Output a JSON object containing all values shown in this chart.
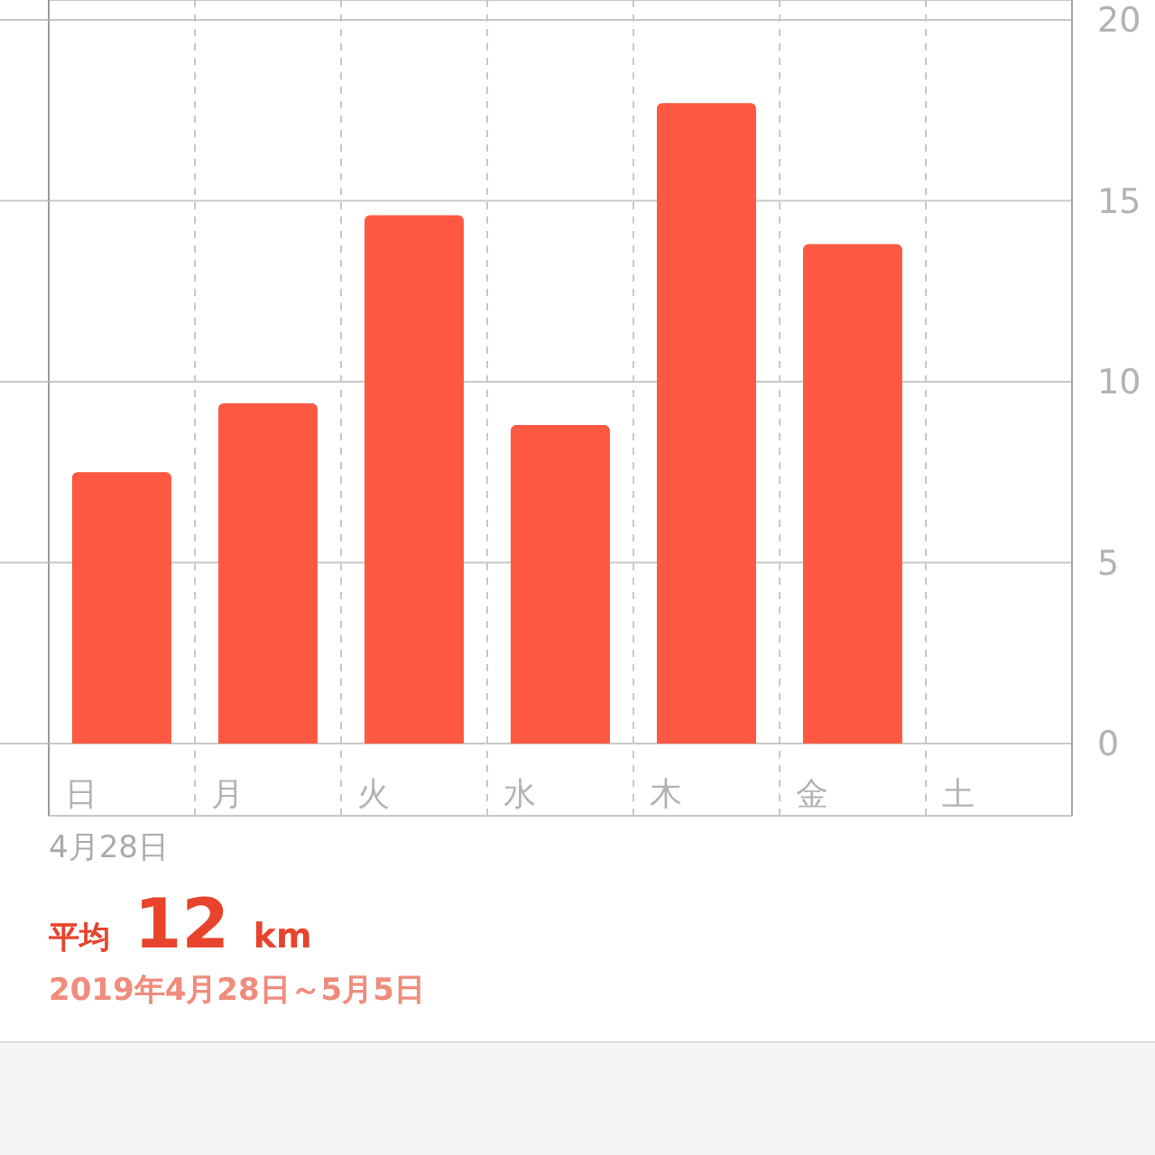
{
  "chart_data": {
    "type": "bar",
    "title": "平均 12 km",
    "subtitle": "2019年4月28日～5月5日",
    "annotations": [
      "4月28日"
    ],
    "categories": [
      "日",
      "月",
      "火",
      "水",
      "木",
      "金",
      "土"
    ],
    "values": [
      7.5,
      9.4,
      14.6,
      8.8,
      17.7,
      13.8,
      null
    ],
    "color": "#fd5842",
    "ylim": [
      0,
      20
    ],
    "yticks": [
      0,
      5,
      10,
      15,
      20
    ],
    "grid": true
  }
}
